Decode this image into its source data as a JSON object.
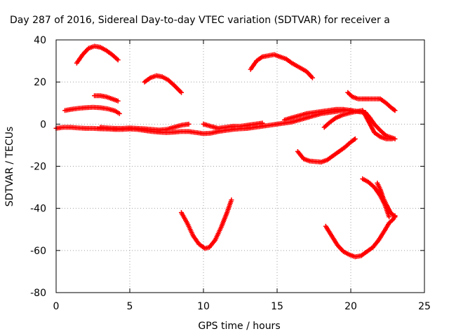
{
  "chart_data": {
    "type": "scatter",
    "title": "Day 287 of 2016, Sidereal Day-to-day VTEC variation (SDTVAR) for receiver a",
    "xlabel": "GPS time / hours",
    "ylabel": "SDTVAR / TECUs",
    "xlim": [
      0,
      25
    ],
    "ylim": [
      -80,
      40
    ],
    "xticks": [
      0,
      5,
      10,
      15,
      20,
      25
    ],
    "yticks": [
      -80,
      -60,
      -40,
      -20,
      0,
      20,
      40
    ],
    "grid": true,
    "marker": "+",
    "color": "#ff0000",
    "series": [
      {
        "x": [
          1.4,
          1.8,
          2.2,
          2.6,
          3.0,
          3.4,
          3.8,
          4.2
        ],
        "y": [
          29,
          33,
          36,
          37,
          36.5,
          35,
          33,
          30.5
        ]
      },
      {
        "x": [
          6.0,
          6.4,
          6.8,
          7.2,
          7.6,
          8.0,
          8.5
        ],
        "y": [
          20,
          22,
          23,
          22.5,
          21,
          18.5,
          15
        ]
      },
      {
        "x": [
          13.2,
          13.6,
          14.0,
          14.4,
          14.8,
          15.2,
          15.6,
          16.0,
          16.5,
          17.0,
          17.4
        ],
        "y": [
          26,
          30,
          32,
          32.5,
          33,
          32,
          31,
          29,
          27,
          25,
          22
        ]
      },
      {
        "x": [
          2.6,
          3.0,
          3.4,
          3.8,
          4.2
        ],
        "y": [
          13.5,
          13.5,
          13,
          12,
          11
        ]
      },
      {
        "x": [
          0.6,
          1.0,
          1.5,
          2.0,
          2.5,
          3.0,
          3.5,
          4.0,
          4.3
        ],
        "y": [
          6.5,
          7,
          7.5,
          7.8,
          8,
          7.8,
          7.3,
          6.3,
          5
        ]
      },
      {
        "x": [
          19.8,
          20.1,
          20.5,
          21.0,
          21.5,
          22.0,
          22.4,
          22.8,
          23.0
        ],
        "y": [
          15,
          13,
          12,
          12,
          12,
          12,
          10,
          7.5,
          6.5
        ]
      },
      {
        "x": [
          0,
          0.5,
          1,
          1.5,
          2,
          2.5,
          3,
          3.5,
          4,
          4.5,
          5,
          5.5,
          6,
          6.5,
          7,
          7.5,
          8,
          8.5,
          9,
          9.5,
          10,
          10.5,
          11,
          11.5,
          12,
          12.5,
          13,
          13.5,
          14,
          14.5,
          15,
          15.5,
          16,
          16.5,
          17,
          17.5,
          18,
          18.5,
          19,
          19.5,
          20,
          20.5,
          21
        ],
        "y": [
          -2,
          -1.5,
          -1.5,
          -1.8,
          -2,
          -2,
          -2.2,
          -2.3,
          -2.5,
          -2.5,
          -2.3,
          -2.5,
          -3,
          -3.5,
          -3.8,
          -4,
          -3.8,
          -3.5,
          -3.5,
          -4,
          -4.5,
          -4.3,
          -3.5,
          -3,
          -2.5,
          -2.2,
          -2,
          -1.5,
          -1,
          -0.5,
          0,
          0.5,
          1,
          2,
          3,
          4,
          5,
          5.5,
          6,
          6.5,
          6.5,
          6,
          5.5
        ]
      },
      {
        "x": [
          3.0,
          3.5,
          4.0,
          4.5,
          5.0,
          5.5,
          6.0,
          6.5,
          7.0,
          7.5,
          8.0,
          8.5,
          9.0
        ],
        "y": [
          -1.5,
          -1.8,
          -2,
          -2,
          -1.8,
          -2,
          -2.2,
          -2.5,
          -2.8,
          -2.5,
          -1.5,
          -0.5,
          0
        ]
      },
      {
        "x": [
          10.0,
          10.5,
          11.0,
          11.5,
          12.0,
          12.5,
          13.0,
          13.5,
          14.0
        ],
        "y": [
          0,
          -1,
          -2,
          -1.5,
          -1,
          -1,
          -0.5,
          0,
          0.5
        ]
      },
      {
        "x": [
          15.5,
          16.0,
          16.5,
          17.0,
          17.5,
          18.0,
          18.5,
          19.0,
          19.5,
          20.0,
          20.5,
          21.0,
          21.3,
          21.6,
          22.0,
          22.4,
          22.8,
          23.0
        ],
        "y": [
          2,
          3,
          4,
          5,
          5.5,
          6,
          6.5,
          7,
          7,
          6.5,
          6,
          5.5,
          3,
          0,
          -3,
          -5.5,
          -6.5,
          -7
        ]
      },
      {
        "x": [
          18.2,
          18.6,
          19.0,
          19.5,
          20.0,
          20.4,
          20.8,
          21.0,
          21.3,
          21.6,
          22.0,
          22.4,
          22.8
        ],
        "y": [
          -1.5,
          1,
          3,
          4.5,
          5.5,
          6,
          6.5,
          4,
          0,
          -4,
          -6,
          -7,
          -7
        ]
      },
      {
        "x": [
          16.4,
          16.8,
          17.2,
          17.6,
          18.0,
          18.4,
          18.8,
          19.2,
          19.6,
          20.0,
          20.3
        ],
        "y": [
          -13,
          -16.5,
          -17.5,
          -17.8,
          -18,
          -17,
          -15,
          -13,
          -11,
          -8.5,
          -7
        ]
      },
      {
        "x": [
          8.5,
          8.9,
          9.3,
          9.7,
          10.1,
          10.4,
          10.8,
          11.2,
          11.6,
          11.9
        ],
        "y": [
          -42,
          -47,
          -53,
          -57,
          -59,
          -58.5,
          -55,
          -49,
          -42,
          -36
        ]
      },
      {
        "x": [
          18.3,
          18.7,
          19.1,
          19.5,
          19.9,
          20.3,
          20.7,
          21.1,
          21.5,
          21.9,
          22.3,
          22.6,
          22.9,
          23.0
        ],
        "y": [
          -48.5,
          -53,
          -57.5,
          -60.5,
          -62,
          -63,
          -62.5,
          -60.5,
          -58.5,
          -55,
          -50.5,
          -47,
          -45,
          -43.5
        ]
      },
      {
        "x": [
          20.8,
          21.2,
          21.6,
          22.0,
          22.3,
          22.6
        ],
        "y": [
          -26,
          -27.5,
          -30,
          -34,
          -38,
          -44
        ]
      },
      {
        "x": [
          21.8,
          22.0,
          22.2,
          22.4,
          22.7,
          23.0
        ],
        "y": [
          -28,
          -31,
          -35,
          -38,
          -42,
          -44
        ]
      }
    ]
  }
}
